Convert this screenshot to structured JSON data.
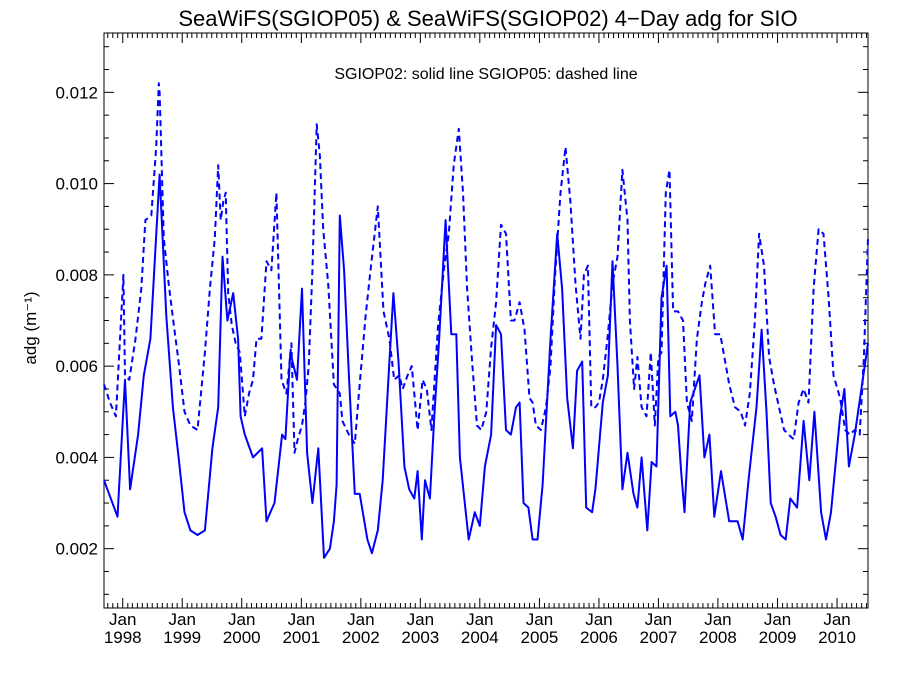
{
  "chart_data": {
    "type": "line",
    "title": "SeaWiFS(SGIOP05) & SeaWiFS(SGIOP02) 4−Day adg for SIO",
    "annotation": "SGIOP02: solid line   SGIOP05: dashed line",
    "xlabel": "",
    "ylabel": "adg (m⁻¹)",
    "ylim": [
      0.0007,
      0.0133
    ],
    "xlim": [
      "1997-09-08",
      "2010-07-10"
    ],
    "y_ticks": [
      "0.002",
      "0.004",
      "0.006",
      "0.008",
      "0.010",
      "0.012"
    ],
    "y_tick_values": [
      0.002,
      0.004,
      0.006,
      0.008,
      0.01,
      0.012
    ],
    "x_ticks": [
      {
        "date": "1998-01-01",
        "month": "Jan",
        "year": "1998"
      },
      {
        "date": "1999-01-01",
        "month": "Jan",
        "year": "1999"
      },
      {
        "date": "2000-01-01",
        "month": "Jan",
        "year": "2000"
      },
      {
        "date": "2001-01-01",
        "month": "Jan",
        "year": "2001"
      },
      {
        "date": "2002-01-01",
        "month": "Jan",
        "year": "2002"
      },
      {
        "date": "2003-01-01",
        "month": "Jan",
        "year": "2003"
      },
      {
        "date": "2004-01-01",
        "month": "Jan",
        "year": "2004"
      },
      {
        "date": "2005-01-01",
        "month": "Jan",
        "year": "2005"
      },
      {
        "date": "2006-01-01",
        "month": "Jan",
        "year": "2006"
      },
      {
        "date": "2007-01-01",
        "month": "Jan",
        "year": "2007"
      },
      {
        "date": "2008-01-01",
        "month": "Jan",
        "year": "2008"
      },
      {
        "date": "2009-01-01",
        "month": "Jan",
        "year": "2009"
      },
      {
        "date": "2010-01-01",
        "month": "Jan",
        "year": "2010"
      }
    ],
    "grid": false,
    "color": "#0000ff",
    "series": [
      {
        "name": "SGIOP02",
        "style": "solid",
        "x": [
          "1997-09-08",
          "1997-11-30",
          "1998-01-15",
          "1998-02-15",
          "1998-04-05",
          "1998-05-10",
          "1998-06-20",
          "1998-08-15",
          "1998-09-25",
          "1998-11-05",
          "1998-12-10",
          "1999-01-15",
          "1999-02-20",
          "1999-04-05",
          "1999-05-20",
          "1999-07-05",
          "1999-08-10",
          "1999-09-05",
          "1999-10-05",
          "1999-11-10",
          "1999-12-10",
          "1999-12-25",
          "2000-01-20",
          "2000-03-10",
          "2000-05-05",
          "2000-06-01",
          "2000-06-25",
          "2000-07-20",
          "2000-09-05",
          "2000-09-25",
          "2000-10-25",
          "2000-12-05",
          "2001-01-05",
          "2001-02-05",
          "2001-03-10",
          "2001-04-15",
          "2001-05-20",
          "2001-06-25",
          "2001-07-20",
          "2001-08-05",
          "2001-08-25",
          "2001-09-20",
          "2001-10-20",
          "2001-11-25",
          "2001-12-25",
          "2002-02-10",
          "2002-03-10",
          "2002-04-15",
          "2002-05-15",
          "2002-06-25",
          "2002-07-20",
          "2002-08-20",
          "2002-09-25",
          "2002-10-25",
          "2002-11-25",
          "2002-12-15",
          "2003-01-10",
          "2003-01-30",
          "2003-03-01",
          "2003-03-28",
          "2003-04-25",
          "2003-06-05",
          "2003-07-10",
          "2003-08-10",
          "2003-09-01",
          "2003-09-28",
          "2003-10-25",
          "2003-12-01",
          "2004-01-01",
          "2004-02-01",
          "2004-03-10",
          "2004-04-10",
          "2004-05-10",
          "2004-06-10",
          "2004-07-10",
          "2004-08-10",
          "2004-09-01",
          "2004-09-25",
          "2004-10-25",
          "2004-11-20",
          "2004-12-20",
          "2005-01-20",
          "2005-03-10",
          "2005-04-20",
          "2005-05-20",
          "2005-06-20",
          "2005-07-25",
          "2005-08-20",
          "2005-09-20",
          "2005-10-15",
          "2005-11-20",
          "2005-12-10",
          "2006-01-01",
          "2006-01-25",
          "2006-02-25",
          "2006-03-25",
          "2006-04-25",
          "2006-05-25",
          "2006-06-25",
          "2006-08-01",
          "2006-08-25",
          "2006-09-20",
          "2006-10-25",
          "2006-11-20",
          "2006-12-20",
          "2007-01-20",
          "2007-02-20",
          "2007-03-15",
          "2007-04-15",
          "2007-05-01",
          "2007-05-20",
          "2007-06-10",
          "2007-07-15",
          "2007-09-10",
          "2007-10-10",
          "2007-11-10",
          "2007-12-10",
          "2008-01-20",
          "2008-03-10",
          "2008-05-01",
          "2008-06-01",
          "2008-07-10",
          "2008-08-25",
          "2008-09-25",
          "2008-10-25",
          "2008-11-20",
          "2008-12-20",
          "2009-01-20",
          "2009-02-20",
          "2009-03-20",
          "2009-05-01",
          "2009-06-10",
          "2009-07-15",
          "2009-08-15",
          "2009-09-25",
          "2009-10-25",
          "2009-11-25",
          "2010-01-20",
          "2010-02-15",
          "2010-03-15",
          "2010-04-20",
          "2010-07-10"
        ],
        "y": [
          0.0035,
          0.0027,
          0.0057,
          0.0033,
          0.0045,
          0.0058,
          0.0066,
          0.0102,
          0.0071,
          0.0051,
          0.004,
          0.0028,
          0.0024,
          0.0023,
          0.0024,
          0.0042,
          0.0051,
          0.0084,
          0.007,
          0.0076,
          0.0066,
          0.0049,
          0.0045,
          0.004,
          0.0042,
          0.0026,
          0.0028,
          0.003,
          0.0045,
          0.0044,
          0.0063,
          0.0057,
          0.0077,
          0.0041,
          0.003,
          0.0042,
          0.0018,
          0.002,
          0.0026,
          0.0034,
          0.0093,
          0.0081,
          0.0058,
          0.0032,
          0.0032,
          0.0022,
          0.0019,
          0.0024,
          0.0035,
          0.0061,
          0.0076,
          0.0061,
          0.0038,
          0.0033,
          0.0031,
          0.0037,
          0.0022,
          0.0035,
          0.0031,
          0.0049,
          0.0065,
          0.0092,
          0.0067,
          0.0067,
          0.004,
          0.0031,
          0.0022,
          0.0028,
          0.0025,
          0.0038,
          0.0045,
          0.0069,
          0.0067,
          0.0046,
          0.0045,
          0.0051,
          0.0052,
          0.003,
          0.0029,
          0.0022,
          0.0022,
          0.0034,
          0.0066,
          0.0089,
          0.0077,
          0.0053,
          0.0042,
          0.0059,
          0.0061,
          0.0029,
          0.0028,
          0.0033,
          0.0042,
          0.0052,
          0.0058,
          0.0083,
          0.006,
          0.0033,
          0.0041,
          0.0032,
          0.0029,
          0.004,
          0.0024,
          0.0039,
          0.0038,
          0.0075,
          0.0082,
          0.0049,
          0.005,
          0.0047,
          0.0037,
          0.0028,
          0.0052,
          0.0058,
          0.004,
          0.0045,
          0.0027,
          0.0037,
          0.0026,
          0.0026,
          0.0022,
          0.0036,
          0.0051,
          0.0068,
          0.005,
          0.003,
          0.0027,
          0.0023,
          0.0022,
          0.0031,
          0.0029,
          0.0048,
          0.0035,
          0.005,
          0.0028,
          0.0022,
          0.0028,
          0.0049,
          0.0055,
          0.0038,
          0.0045,
          0.0065
        ]
      },
      {
        "name": "SGIOP05",
        "style": "dashed",
        "x": [
          "1997-09-08",
          "1997-10-15",
          "1997-11-20",
          "1998-01-05",
          "1998-01-15",
          "1998-02-10",
          "1998-03-20",
          "1998-04-25",
          "1998-05-20",
          "1998-06-25",
          "1998-07-25",
          "1998-08-10",
          "1998-08-15",
          "1998-09-10",
          "1998-10-10",
          "1998-11-10",
          "1998-12-10",
          "1999-01-15",
          "1999-02-20",
          "1999-04-05",
          "1999-05-20",
          "1999-06-20",
          "1999-07-20",
          "1999-08-10",
          "1999-08-25",
          "1999-09-10",
          "1999-09-25",
          "1999-10-10",
          "1999-11-01",
          "1999-11-25",
          "1999-12-20",
          "2000-01-20",
          "2000-02-15",
          "2000-03-10",
          "2000-04-01",
          "2000-05-01",
          "2000-06-01",
          "2000-07-01",
          "2000-08-01",
          "2000-09-01",
          "2000-10-01",
          "2000-11-01",
          "2000-11-20",
          "2000-12-10",
          "2001-01-05",
          "2001-01-25",
          "2001-02-15",
          "2001-03-10",
          "2001-04-05",
          "2001-04-25",
          "2001-05-15",
          "2001-06-15",
          "2001-07-20",
          "2001-08-25",
          "2001-09-10",
          "2001-10-20",
          "2001-11-25",
          "2001-12-20",
          "2002-01-30",
          "2002-03-01",
          "2002-04-15",
          "2002-05-20",
          "2002-06-25",
          "2002-07-25",
          "2002-08-25",
          "2002-09-15",
          "2002-10-15",
          "2002-11-10",
          "2002-12-15",
          "2003-01-15",
          "2003-02-10",
          "2003-03-10",
          "2003-04-20",
          "2003-05-25",
          "2003-06-25",
          "2003-07-25",
          "2003-08-25",
          "2003-09-20",
          "2003-10-15",
          "2003-11-15",
          "2003-12-15",
          "2004-01-10",
          "2004-02-10",
          "2004-03-10",
          "2004-04-10",
          "2004-05-10",
          "2004-06-10",
          "2004-07-10",
          "2004-08-01",
          "2004-09-01",
          "2004-10-01",
          "2004-11-01",
          "2004-11-20",
          "2004-12-10",
          "2005-01-10",
          "2005-02-10",
          "2005-03-10",
          "2005-04-05",
          "2005-05-10",
          "2005-06-10",
          "2005-07-10",
          "2005-08-10",
          "2005-09-10",
          "2005-10-01",
          "2005-10-25",
          "2005-11-15",
          "2005-12-10",
          "2006-01-01",
          "2006-01-25",
          "2006-02-25",
          "2006-03-25",
          "2006-04-25",
          "2006-05-25",
          "2006-06-25",
          "2006-07-10",
          "2006-08-05",
          "2006-08-25",
          "2006-09-20",
          "2006-10-20",
          "2006-11-15",
          "2006-12-10",
          "2007-01-01",
          "2007-01-20",
          "2007-02-15",
          "2007-03-10",
          "2007-04-01",
          "2007-05-01",
          "2007-06-01",
          "2007-06-25",
          "2007-07-25",
          "2007-08-25",
          "2007-09-25",
          "2007-10-15",
          "2007-11-15",
          "2007-12-15",
          "2008-01-15",
          "2008-02-10",
          "2008-03-10",
          "2008-04-15",
          "2008-05-20",
          "2008-06-15",
          "2008-07-15",
          "2008-08-15",
          "2008-09-10",
          "2008-10-10",
          "2008-11-10",
          "2008-12-10",
          "2009-01-10",
          "2009-02-10",
          "2009-03-10",
          "2009-04-10",
          "2009-05-10",
          "2009-06-10",
          "2009-07-10",
          "2009-08-10",
          "2009-09-10",
          "2009-10-10",
          "2009-11-10",
          "2009-12-10",
          "2010-01-20",
          "2010-02-20",
          "2010-03-20",
          "2010-04-20",
          "2010-05-20",
          "2010-06-15",
          "2010-07-10"
        ],
        "y": [
          0.0056,
          0.0052,
          0.0049,
          0.008,
          0.0058,
          0.0057,
          0.0066,
          0.0077,
          0.0092,
          0.0093,
          0.0108,
          0.0122,
          0.012,
          0.0088,
          0.0078,
          0.0069,
          0.0061,
          0.005,
          0.0047,
          0.0046,
          0.0063,
          0.0077,
          0.0088,
          0.0104,
          0.0092,
          0.0096,
          0.0098,
          0.0076,
          0.0069,
          0.0065,
          0.0063,
          0.0049,
          0.0054,
          0.0057,
          0.0066,
          0.0066,
          0.0083,
          0.0081,
          0.0098,
          0.0057,
          0.0054,
          0.0065,
          0.0041,
          0.0044,
          0.0047,
          0.0052,
          0.006,
          0.0081,
          0.0113,
          0.0106,
          0.009,
          0.0078,
          0.0056,
          0.0054,
          0.0048,
          0.0045,
          0.0043,
          0.0054,
          0.0071,
          0.0081,
          0.0095,
          0.0072,
          0.0066,
          0.0057,
          0.0058,
          0.0055,
          0.0058,
          0.006,
          0.0046,
          0.0057,
          0.0055,
          0.0046,
          0.0069,
          0.0081,
          0.0089,
          0.0104,
          0.0112,
          0.0098,
          0.0077,
          0.0061,
          0.0047,
          0.0046,
          0.005,
          0.0064,
          0.0074,
          0.0091,
          0.0089,
          0.007,
          0.007,
          0.0074,
          0.0068,
          0.0053,
          0.0052,
          0.0047,
          0.0046,
          0.0051,
          0.006,
          0.0079,
          0.0098,
          0.0108,
          0.0096,
          0.0078,
          0.0066,
          0.008,
          0.0082,
          0.0051,
          0.0051,
          0.0052,
          0.0057,
          0.0067,
          0.0078,
          0.0084,
          0.0103,
          0.0092,
          0.007,
          0.0055,
          0.0062,
          0.0051,
          0.0049,
          0.0063,
          0.0047,
          0.0062,
          0.0063,
          0.0098,
          0.0103,
          0.0072,
          0.0072,
          0.007,
          0.0052,
          0.0048,
          0.0066,
          0.0074,
          0.0078,
          0.0082,
          0.0067,
          0.0067,
          0.0062,
          0.0056,
          0.0051,
          0.005,
          0.0047,
          0.0054,
          0.007,
          0.0089,
          0.0082,
          0.0062,
          0.0056,
          0.0051,
          0.0046,
          0.0045,
          0.0044,
          0.0052,
          0.0055,
          0.0052,
          0.0077,
          0.009,
          0.0089,
          0.0075,
          0.0058,
          0.0053,
          0.0046,
          0.0045,
          0.0046,
          0.0045,
          0.0062,
          0.0088
        ]
      }
    ]
  }
}
